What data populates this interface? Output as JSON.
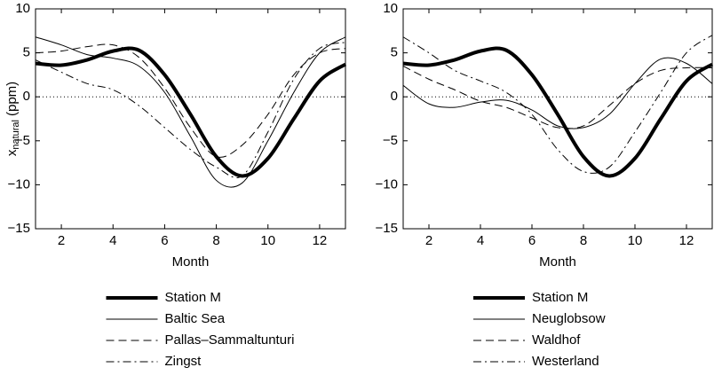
{
  "chart_data": [
    {
      "type": "line",
      "ylabel": "x",
      "ylabel_sub": "natural",
      "ylabel_unit": "(ppm)",
      "xlabel": "Month",
      "x": [
        1,
        2,
        3,
        4,
        5,
        6,
        7,
        8,
        9,
        10,
        11,
        12,
        13
      ],
      "xlim": [
        1,
        13
      ],
      "xticks": [
        2,
        4,
        6,
        8,
        10,
        12
      ],
      "ylim": [
        -15,
        10
      ],
      "yticks": [
        {
          "value": -15,
          "label": "−15"
        },
        {
          "value": -10,
          "label": "−10"
        },
        {
          "value": -5,
          "label": "−5"
        },
        0,
        5,
        10
      ],
      "zero_line": true,
      "legend": "below",
      "series": [
        {
          "name": "Station M",
          "color": "#000000",
          "linestyle": "solid",
          "linewidth": 4,
          "values": [
            3.8,
            3.6,
            4.2,
            5.2,
            5.3,
            2.5,
            -2,
            -6.8,
            -9,
            -7,
            -2.5,
            1.8,
            3.7
          ]
        },
        {
          "name": "Baltic Sea",
          "color": "#000000",
          "linestyle": "solid",
          "linewidth": 1,
          "values": [
            6.8,
            5.9,
            4.8,
            4.4,
            3.5,
            0.5,
            -4.5,
            -9.5,
            -9.8,
            -5,
            0.5,
            5,
            6.8
          ]
        },
        {
          "name": "Pallas–Sammaltunturi",
          "color": "#000000",
          "linestyle": "dashed",
          "linewidth": 1,
          "values": [
            5,
            5.2,
            5.7,
            5.9,
            4.5,
            1,
            -3.5,
            -6.8,
            -5.5,
            -2,
            2.5,
            5,
            5.5
          ]
        },
        {
          "name": "Zingst",
          "color": "#000000",
          "linestyle": "dashdot",
          "linewidth": 1,
          "values": [
            4.2,
            2.8,
            1.5,
            0.8,
            -1,
            -3.5,
            -6,
            -8,
            -9,
            -4,
            2,
            5.5,
            6.2
          ]
        }
      ]
    },
    {
      "type": "line",
      "xlabel": "Month",
      "x": [
        1,
        2,
        3,
        4,
        5,
        6,
        7,
        8,
        9,
        10,
        11,
        12,
        13
      ],
      "xlim": [
        1,
        13
      ],
      "xticks": [
        2,
        4,
        6,
        8,
        10,
        12
      ],
      "ylim": [
        -15,
        10
      ],
      "yticks": [
        {
          "value": -15,
          "label": "−15"
        },
        {
          "value": -10,
          "label": "−10"
        },
        {
          "value": -5,
          "label": "−5"
        },
        0,
        5,
        10
      ],
      "zero_line": true,
      "legend": "below",
      "series": [
        {
          "name": "Station M",
          "color": "#000000",
          "linestyle": "solid",
          "linewidth": 4,
          "values": [
            3.8,
            3.6,
            4.2,
            5.2,
            5.3,
            2.5,
            -2,
            -6.8,
            -9,
            -7,
            -2.5,
            1.8,
            3.7
          ]
        },
        {
          "name": "Neuglobsow",
          "color": "#000000",
          "linestyle": "solid",
          "linewidth": 1,
          "values": [
            1.3,
            -0.8,
            -1.2,
            -0.6,
            -0.4,
            -1.5,
            -3.3,
            -3.5,
            -2,
            1.5,
            4.3,
            3.8,
            1.5
          ]
        },
        {
          "name": "Waldhof",
          "color": "#000000",
          "linestyle": "dashed",
          "linewidth": 1,
          "values": [
            3.5,
            2,
            0.8,
            -0.5,
            -1.2,
            -2.4,
            -3.5,
            -3.3,
            -1,
            1.5,
            3,
            3.3,
            3.3
          ]
        },
        {
          "name": "Westerland",
          "color": "#000000",
          "linestyle": "dashdot",
          "linewidth": 1,
          "values": [
            6.8,
            5,
            3,
            1.8,
            0.5,
            -2,
            -6,
            -8.5,
            -8,
            -4,
            0.5,
            5,
            7
          ]
        }
      ]
    }
  ]
}
